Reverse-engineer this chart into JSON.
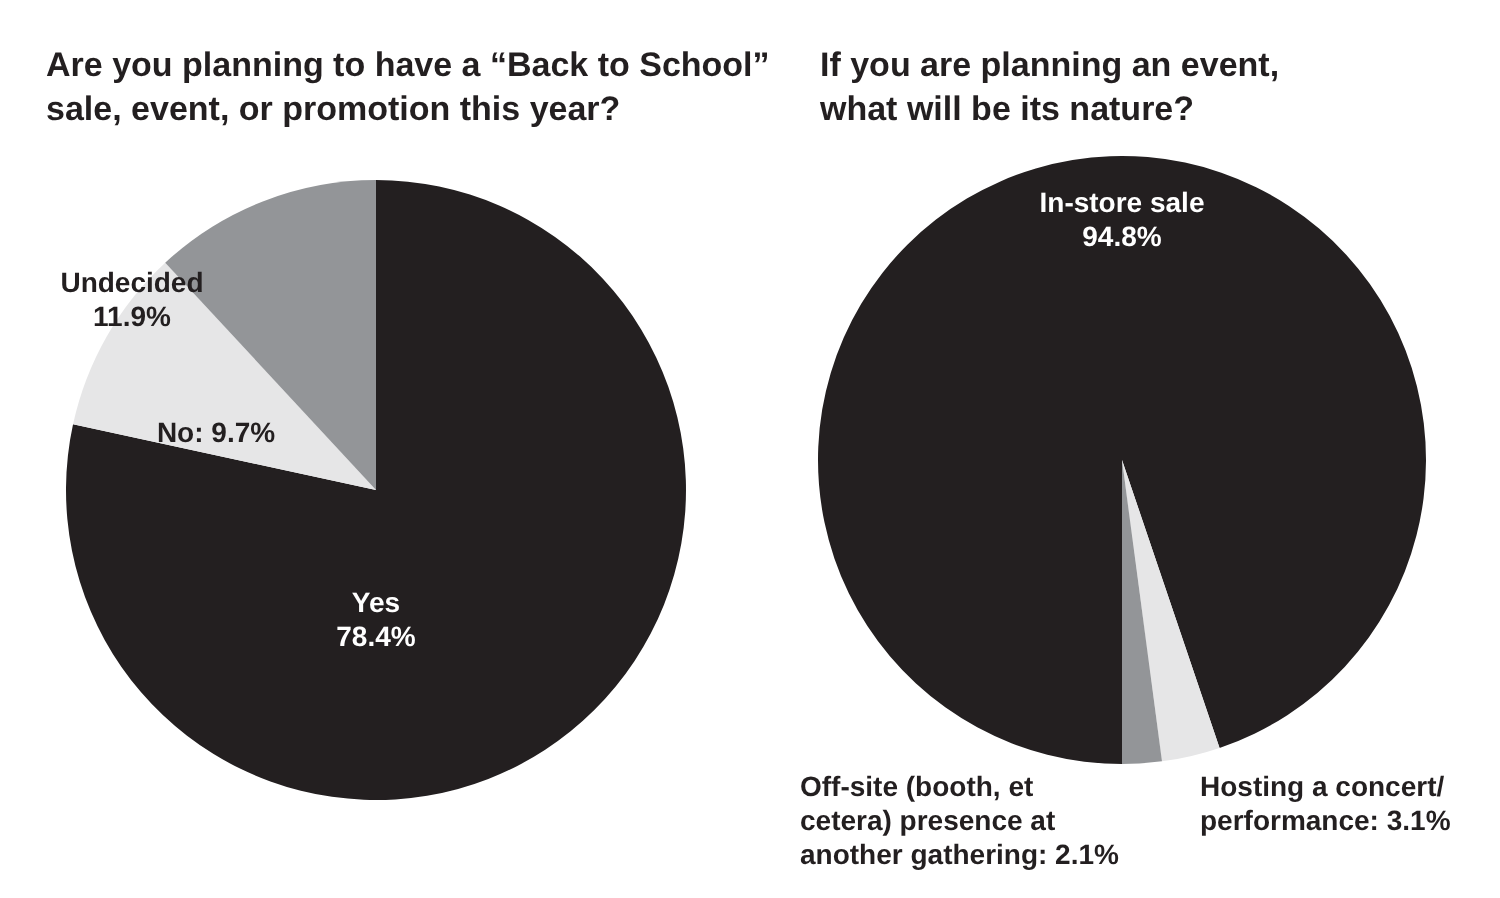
{
  "chart_data": [
    {
      "type": "pie",
      "title": "Are you planning to have a “Back to School” sale, event, or promotion this year?",
      "categories": [
        "Yes",
        "No",
        "Undecided"
      ],
      "values": [
        78.4,
        9.7,
        11.9
      ],
      "colors": [
        "#231f20",
        "#e6e6e7",
        "#939598"
      ],
      "value_labels": [
        "78.4%",
        "9.7%",
        "11.9%"
      ]
    },
    {
      "type": "pie",
      "title": "If you are planning an event, what will be its nature?",
      "categories": [
        "In-store sale",
        "Hosting a concert/performance",
        "Off-site (booth, et cetera) presence at another gathering"
      ],
      "values": [
        94.8,
        3.1,
        2.1
      ],
      "colors": [
        "#231f20",
        "#e6e6e7",
        "#939598"
      ],
      "value_labels": [
        "94.8%",
        "3.1%",
        "2.1%"
      ]
    }
  ]
}
